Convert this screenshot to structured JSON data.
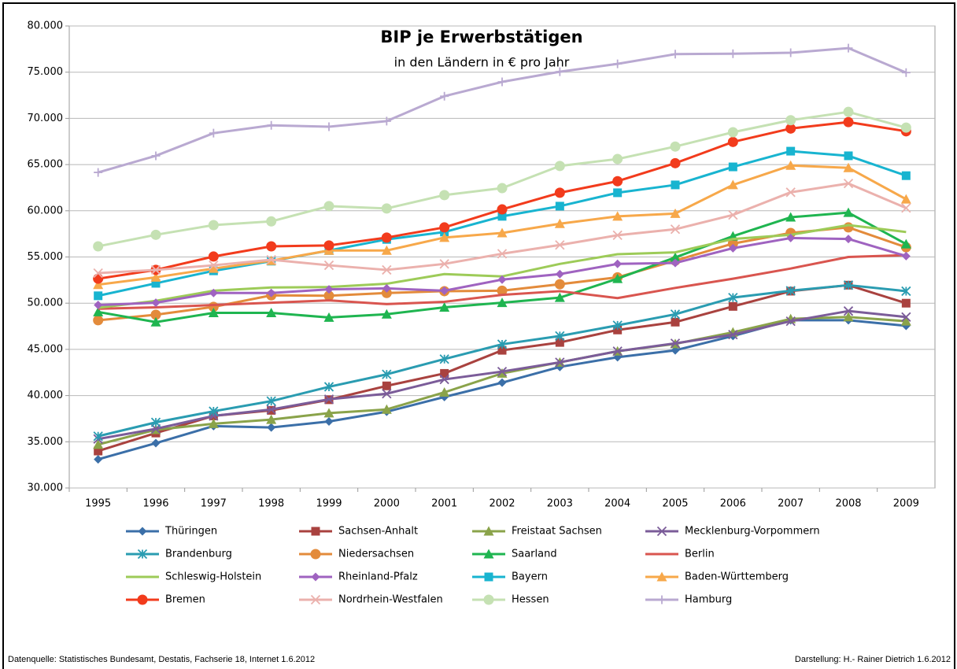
{
  "chart_data": {
    "type": "line",
    "title": "BIP je Erwerbstätigen",
    "subtitle": "in den Ländern in € pro Jahr",
    "categories": [
      "1995",
      "1996",
      "1997",
      "1998",
      "1999",
      "2000",
      "2001",
      "2002",
      "2003",
      "2004",
      "2005",
      "2006",
      "2007",
      "2008",
      "2009"
    ],
    "ylim": [
      30000,
      80000
    ],
    "yticks": [
      {
        "value": 30000,
        "label": "30.000"
      },
      {
        "value": 35000,
        "label": "35.000"
      },
      {
        "value": 40000,
        "label": "40.000"
      },
      {
        "value": 45000,
        "label": "45.000"
      },
      {
        "value": 50000,
        "label": "50.000"
      },
      {
        "value": 55000,
        "label": "55.000"
      },
      {
        "value": 60000,
        "label": "60.000"
      },
      {
        "value": 65000,
        "label": "65.000"
      },
      {
        "value": 70000,
        "label": "70.000"
      },
      {
        "value": 75000,
        "label": "75.000"
      },
      {
        "value": 80000,
        "label": "80.000"
      }
    ],
    "grid": true,
    "legend": "bottom",
    "series": [
      {
        "name": "Thüringen",
        "color": "#3b6fa8",
        "marker": "diamond",
        "values": [
          33100,
          34850,
          36700,
          36550,
          37200,
          38250,
          39850,
          41400,
          43100,
          44150,
          44900,
          46450,
          48150,
          48150,
          47550
        ]
      },
      {
        "name": "Sachsen-Anhalt",
        "color": "#a9423f",
        "marker": "square",
        "values": [
          34000,
          35950,
          37800,
          38400,
          39550,
          41050,
          42400,
          44900,
          45750,
          47100,
          47950,
          49650,
          51300,
          51950,
          50000
        ]
      },
      {
        "name": "Freistaat Sachsen",
        "color": "#8aa34a",
        "marker": "triangle",
        "values": [
          34700,
          36300,
          36950,
          37400,
          38100,
          38500,
          40350,
          42400,
          43600,
          44800,
          45600,
          46850,
          48300,
          48500,
          48050
        ]
      },
      {
        "name": "Mecklenburg-Vorpommern",
        "color": "#7b5c99",
        "marker": "x",
        "values": [
          35300,
          36400,
          37800,
          38500,
          39600,
          40200,
          41750,
          42600,
          43600,
          44800,
          45650,
          46600,
          48050,
          49150,
          48500
        ]
      },
      {
        "name": "Brandenburg",
        "color": "#2a9cb1",
        "marker": "asterisk",
        "values": [
          35600,
          37100,
          38300,
          39400,
          40950,
          42300,
          43950,
          45550,
          46450,
          47600,
          48800,
          50600,
          51350,
          51950,
          51300
        ]
      },
      {
        "name": "Niedersachsen",
        "color": "#e38b3b",
        "marker": "circle",
        "values": [
          48150,
          48750,
          49600,
          50850,
          50800,
          51100,
          51300,
          51350,
          52050,
          52800,
          54600,
          56450,
          57600,
          58200,
          56050
        ]
      },
      {
        "name": "Saarland",
        "color": "#1fb550",
        "marker": "triangle",
        "values": [
          49050,
          47950,
          48950,
          48950,
          48450,
          48800,
          49550,
          50050,
          50600,
          52650,
          54950,
          57250,
          59300,
          59800,
          56400
        ]
      },
      {
        "name": "Berlin",
        "color": "#d9554f",
        "marker": "none",
        "values": [
          49400,
          49550,
          49800,
          50050,
          50300,
          49900,
          50150,
          50900,
          51300,
          50550,
          51650,
          52650,
          53750,
          55000,
          55200
        ]
      },
      {
        "name": "Schleswig-Holstein",
        "color": "#9dcb58",
        "marker": "none",
        "values": [
          49500,
          50250,
          51350,
          51700,
          51750,
          52100,
          53150,
          52900,
          54250,
          55300,
          55500,
          56950,
          57400,
          58450,
          57700
        ]
      },
      {
        "name": "Rheinland-Pfalz",
        "color": "#9f63c0",
        "marker": "diamond",
        "values": [
          49800,
          50050,
          51100,
          51100,
          51500,
          51600,
          51350,
          52550,
          53150,
          54250,
          54350,
          55950,
          57050,
          56950,
          55100
        ]
      },
      {
        "name": "Bayern",
        "color": "#18b4d0",
        "marker": "square",
        "values": [
          50800,
          52150,
          53500,
          54550,
          55700,
          56900,
          57700,
          59400,
          60500,
          61950,
          62800,
          64750,
          66450,
          65950,
          63800
        ]
      },
      {
        "name": "Baden-Württemberg",
        "color": "#f7a84a",
        "marker": "triangle",
        "values": [
          52000,
          52800,
          53750,
          54600,
          55700,
          55700,
          57100,
          57600,
          58600,
          59400,
          59700,
          62800,
          64900,
          64650,
          61250
        ]
      },
      {
        "name": "Bremen",
        "color": "#f23b1c",
        "marker": "circle",
        "values": [
          52650,
          53600,
          55050,
          56150,
          56250,
          57100,
          58200,
          60150,
          61950,
          63200,
          65150,
          67450,
          68900,
          69600,
          68600
        ]
      },
      {
        "name": "Nordrhein-Westfalen",
        "color": "#ebb1ad",
        "marker": "x",
        "values": [
          53250,
          53600,
          54100,
          54700,
          54100,
          53600,
          54250,
          55350,
          56300,
          57350,
          58000,
          59550,
          62000,
          62950,
          60300
        ]
      },
      {
        "name": "Hessen",
        "color": "#c5e1b3",
        "marker": "circle",
        "values": [
          56150,
          57400,
          58450,
          58850,
          60500,
          60250,
          61700,
          62450,
          64850,
          65600,
          66950,
          68500,
          69800,
          70700,
          69000
        ]
      },
      {
        "name": "Hamburg",
        "color": "#b9a9d1",
        "marker": "plus",
        "values": [
          64150,
          65950,
          68400,
          69250,
          69100,
          69700,
          72400,
          73950,
          75050,
          75900,
          76950,
          77000,
          77100,
          77600,
          74950
        ]
      }
    ],
    "footer_left": "Datenquelle: Statistisches Bundesamt, Destatis, Fachserie 18, Internet 1.6.2012",
    "footer_right": "Darstellung: H.- Rainer Dietrich 1.6.2012"
  }
}
